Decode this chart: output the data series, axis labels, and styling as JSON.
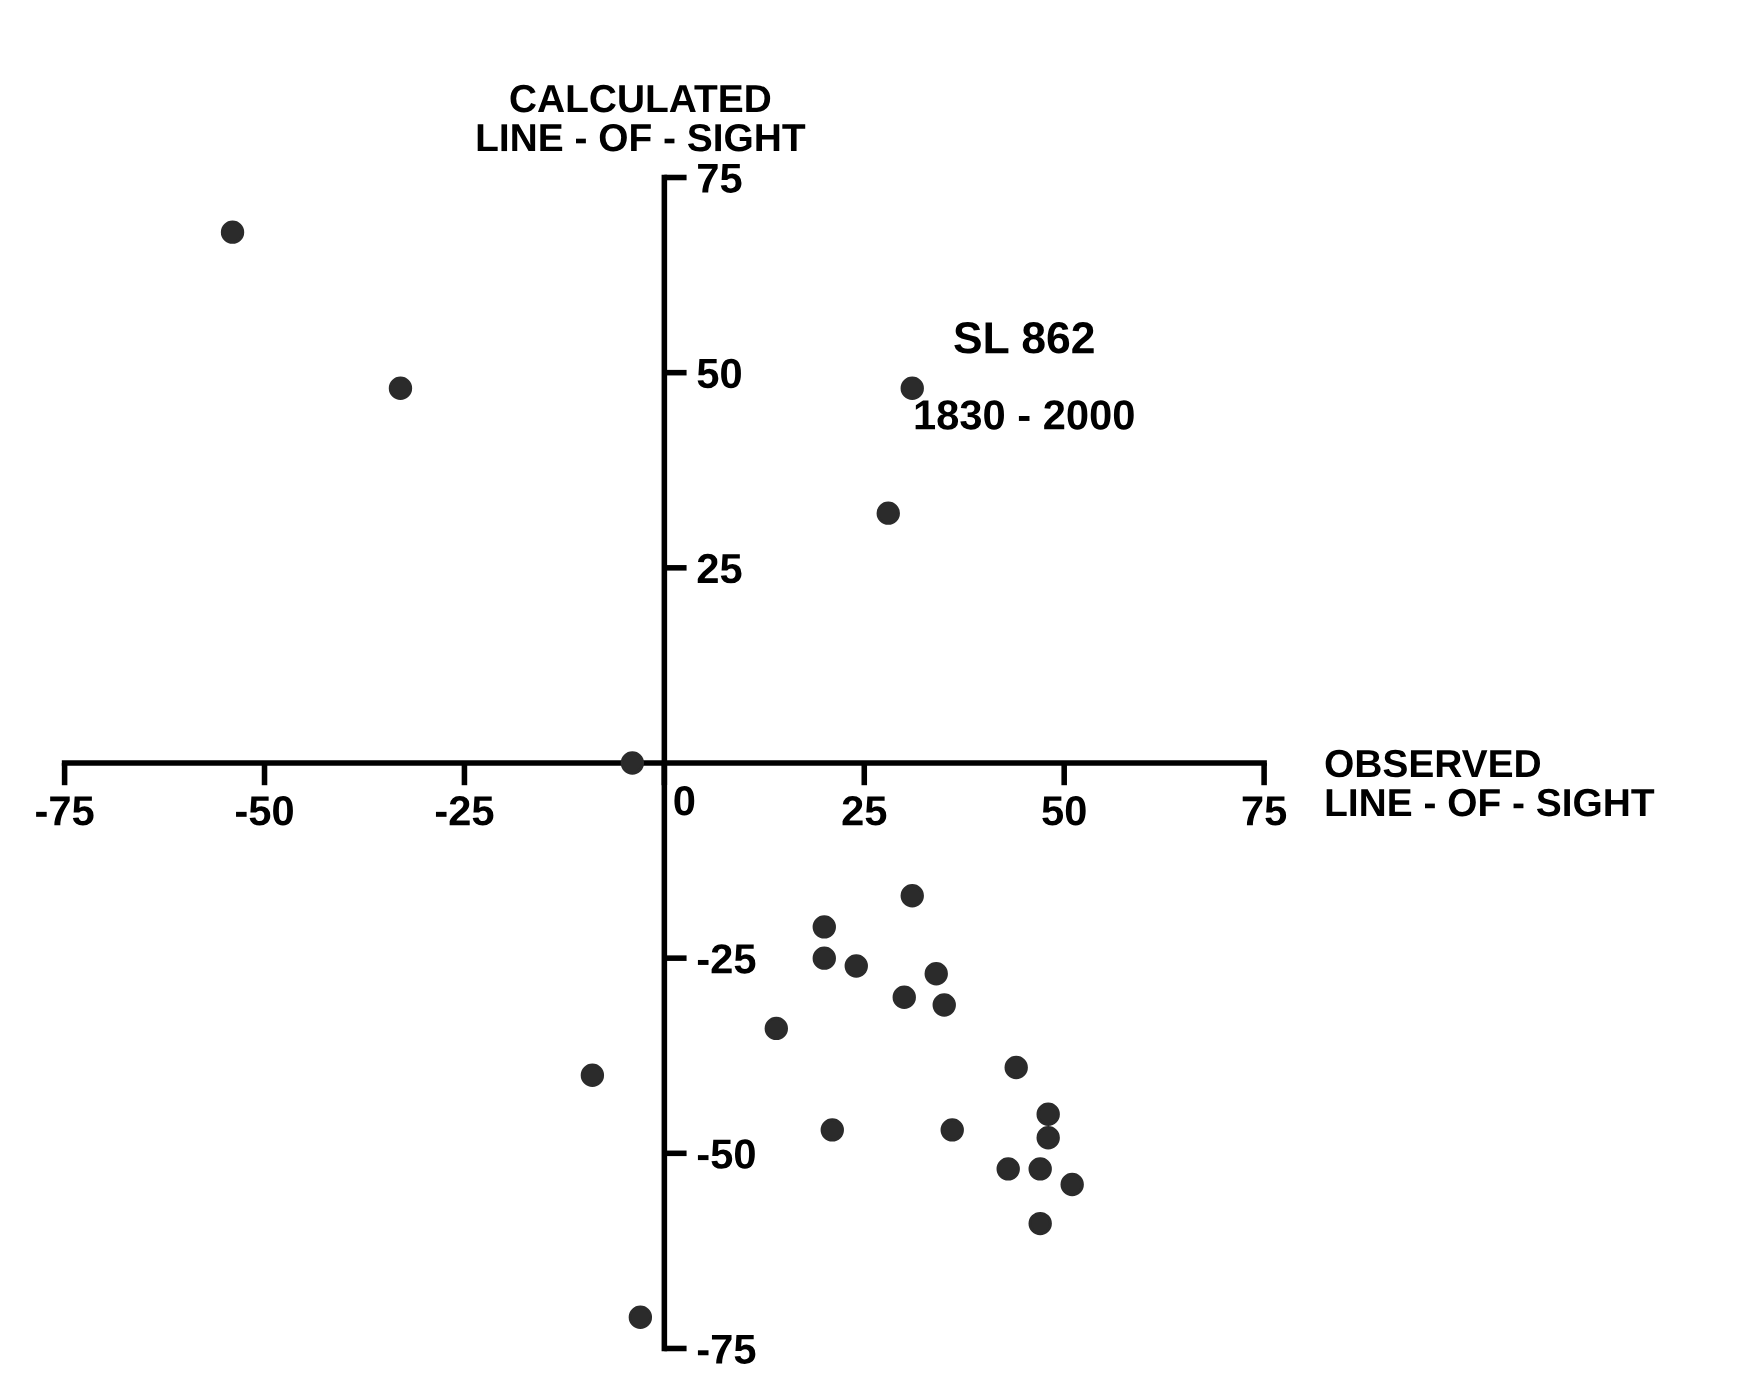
{
  "chart_data": {
    "type": "scatter",
    "xlabel": "OBSERVED\nLINE - OF - SIGHT",
    "ylabel": "CALCULATED\nLINE - OF - SIGHT",
    "annotations": [
      "SL 862",
      "1830 - 2000"
    ],
    "series": [
      {
        "color": "#2b2b2b",
        "x": [
          -54,
          -33,
          31,
          28,
          -4,
          -9,
          -3,
          31,
          20,
          20,
          24,
          34,
          30,
          35,
          14,
          44,
          21,
          36,
          48,
          48,
          43,
          47,
          51,
          47
        ],
        "values": [
          68,
          48,
          48,
          32,
          0,
          -40,
          -71,
          -17,
          -21,
          -25,
          -26,
          -27,
          -30,
          -31,
          -34,
          -39,
          -47,
          -47,
          -45,
          -48,
          -52,
          -52,
          -54,
          -59
        ]
      }
    ],
    "xlim": [
      -75,
      75
    ],
    "ylim": [
      -75,
      75
    ],
    "xticks": [
      -75,
      -50,
      -25,
      0,
      25,
      50,
      75
    ],
    "yticks": [
      -75,
      -50,
      -25,
      25,
      50,
      75
    ],
    "marker": "circle",
    "grid": false,
    "legend": false
  }
}
